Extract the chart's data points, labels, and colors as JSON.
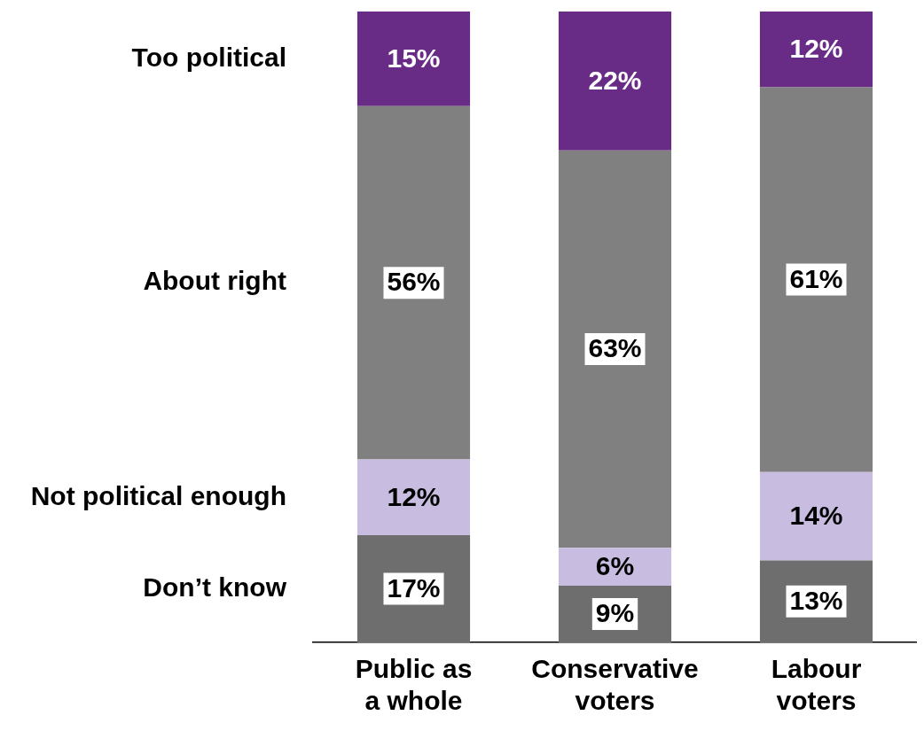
{
  "chart_data": {
    "type": "bar",
    "stacked": true,
    "categories": [
      "Public as a whole",
      "Conservative voters",
      "Labour voters"
    ],
    "series": [
      {
        "name": "Don’t know",
        "color": "#6e6e6e",
        "values": [
          17,
          9,
          13
        ],
        "value_labels": [
          "17%",
          "9%",
          "13%"
        ]
      },
      {
        "name": "Not political enough",
        "color": "#c8bde0",
        "values": [
          12,
          6,
          14
        ],
        "value_labels": [
          "12%",
          "6%",
          "14%"
        ]
      },
      {
        "name": "About right",
        "color": "#808080",
        "values": [
          56,
          63,
          61
        ],
        "value_labels": [
          "56%",
          "63%",
          "61%"
        ]
      },
      {
        "name": "Too political",
        "color": "#692c86",
        "values": [
          15,
          22,
          12
        ],
        "value_labels": [
          "15%",
          "22%",
          "12%"
        ]
      }
    ],
    "legend": false,
    "grid": false
  }
}
